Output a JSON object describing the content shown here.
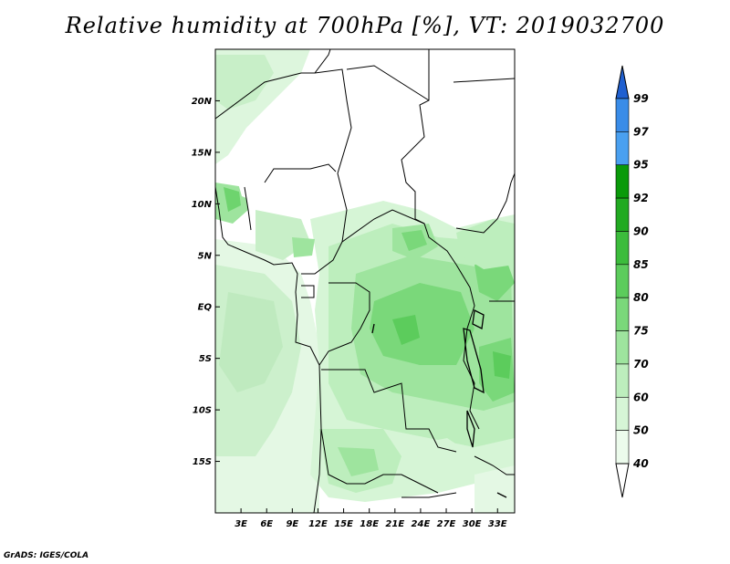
{
  "title": "Relative humidity at 700hPa [%], VT: 2019032700",
  "credit": "GrADS: IGES/COLA",
  "map": {
    "lon_range": [
      0,
      35
    ],
    "lat_range": [
      -20,
      25
    ],
    "lat_ticks": [
      {
        "value": 20,
        "label": "20N"
      },
      {
        "value": 15,
        "label": "15N"
      },
      {
        "value": 10,
        "label": "10N"
      },
      {
        "value": 5,
        "label": "5N"
      },
      {
        "value": 0,
        "label": "EQ"
      },
      {
        "value": -5,
        "label": "5S"
      },
      {
        "value": -10,
        "label": "10S"
      },
      {
        "value": -15,
        "label": "15S"
      }
    ],
    "lon_ticks": [
      {
        "value": 3,
        "label": "3E"
      },
      {
        "value": 6,
        "label": "6E"
      },
      {
        "value": 9,
        "label": "9E"
      },
      {
        "value": 12,
        "label": "12E"
      },
      {
        "value": 15,
        "label": "15E"
      },
      {
        "value": 18,
        "label": "18E"
      },
      {
        "value": 21,
        "label": "21E"
      },
      {
        "value": 24,
        "label": "24E"
      },
      {
        "value": 27,
        "label": "27E"
      },
      {
        "value": 30,
        "label": "30E"
      },
      {
        "value": 33,
        "label": "33E"
      }
    ]
  },
  "colorbar": {
    "levels": [
      "99",
      "97",
      "95",
      "92",
      "90",
      "85",
      "80",
      "75",
      "70",
      "60",
      "50",
      "40"
    ],
    "colors": [
      "#2060d0",
      "#3a8ce8",
      "#4aa0f0",
      "#0a9a0a",
      "#22aa22",
      "#3cbc3c",
      "#5ccc5c",
      "#7ad87a",
      "#9ee49e",
      "#bdeebd",
      "#d6f5d6",
      "#ecfbec"
    ]
  }
}
